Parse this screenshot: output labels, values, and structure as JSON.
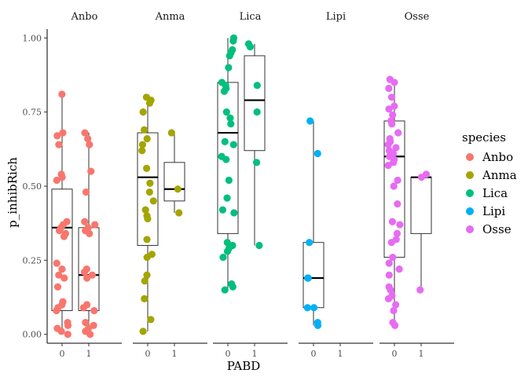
{
  "chart_data": {
    "type": "boxplot-jitter",
    "xlabel": "PABD",
    "ylabel": "p_inhibRich",
    "ylim": [
      -0.03,
      1.03
    ],
    "yticks": [
      0.0,
      0.25,
      0.5,
      0.75,
      1.0
    ],
    "ytick_labels": [
      "0.00",
      "0.25",
      "0.50",
      "0.75",
      "1.00"
    ],
    "xtick_labels": [
      "0",
      "1"
    ],
    "legend": {
      "title": "species",
      "placement": "right"
    },
    "panels": [
      {
        "name": "Anbo",
        "color": "#F8766D",
        "boxes": [
          {
            "pabd": "0",
            "min": 0.0,
            "q1": 0.08,
            "median": 0.36,
            "q3": 0.49,
            "max": 0.81
          },
          {
            "pabd": "1",
            "min": 0.0,
            "q1": 0.08,
            "median": 0.2,
            "q3": 0.36,
            "max": 0.68
          }
        ],
        "points": [
          {
            "pabd": "0",
            "values": [
              0.81,
              0.68,
              0.67,
              0.64,
              0.54,
              0.53,
              0.52,
              0.38,
              0.37,
              0.36,
              0.35,
              0.34,
              0.33,
              0.24,
              0.22,
              0.2,
              0.19,
              0.16,
              0.11,
              0.1,
              0.09,
              0.08,
              0.04,
              0.03,
              0.02,
              0.01,
              0.0
            ]
          },
          {
            "pabd": "1",
            "values": [
              0.68,
              0.66,
              0.64,
              0.55,
              0.48,
              0.38,
              0.37,
              0.36,
              0.35,
              0.34,
              0.22,
              0.21,
              0.2,
              0.19,
              0.1,
              0.09,
              0.08,
              0.04,
              0.03,
              0.02,
              0.01,
              0.0
            ]
          }
        ]
      },
      {
        "name": "Anma",
        "color": "#A3A500",
        "boxes": [
          {
            "pabd": "0",
            "min": 0.01,
            "q1": 0.3,
            "median": 0.53,
            "q3": 0.68,
            "max": 0.8
          },
          {
            "pabd": "1",
            "min": 0.41,
            "q1": 0.45,
            "median": 0.49,
            "q3": 0.58,
            "max": 0.68
          }
        ],
        "points": [
          {
            "pabd": "0",
            "values": [
              0.8,
              0.79,
              0.78,
              0.75,
              0.69,
              0.66,
              0.64,
              0.62,
              0.56,
              0.51,
              0.48,
              0.45,
              0.42,
              0.4,
              0.39,
              0.32,
              0.27,
              0.26,
              0.2,
              0.18,
              0.12,
              0.05,
              0.01
            ]
          },
          {
            "pabd": "1",
            "values": [
              0.68,
              0.49,
              0.41
            ]
          }
        ]
      },
      {
        "name": "Lica",
        "color": "#00BF7D",
        "boxes": [
          {
            "pabd": "0",
            "min": 0.15,
            "q1": 0.34,
            "median": 0.68,
            "q3": 0.85,
            "max": 1.0
          },
          {
            "pabd": "1",
            "min": 0.3,
            "q1": 0.62,
            "median": 0.79,
            "q3": 0.94,
            "max": 0.98
          }
        ],
        "points": [
          {
            "pabd": "0",
            "values": [
              1.0,
              0.99,
              0.96,
              0.95,
              0.94,
              0.9,
              0.85,
              0.84,
              0.83,
              0.82,
              0.75,
              0.73,
              0.71,
              0.65,
              0.64,
              0.6,
              0.59,
              0.52,
              0.46,
              0.42,
              0.41,
              0.31,
              0.3,
              0.29,
              0.28,
              0.26,
              0.17,
              0.16,
              0.15
            ]
          },
          {
            "pabd": "1",
            "values": [
              0.98,
              0.97,
              0.84,
              0.75,
              0.58,
              0.3
            ]
          }
        ]
      },
      {
        "name": "Lipi",
        "color": "#00B0F6",
        "boxes": [
          {
            "pabd": "0",
            "min": 0.03,
            "q1": 0.09,
            "median": 0.19,
            "q3": 0.31,
            "max": 0.72
          }
        ],
        "points": [
          {
            "pabd": "0",
            "values": [
              0.72,
              0.61,
              0.31,
              0.19,
              0.19,
              0.09,
              0.09,
              0.04,
              0.03
            ]
          }
        ]
      },
      {
        "name": "Osse",
        "color": "#E76BF3",
        "boxes": [
          {
            "pabd": "0",
            "min": 0.03,
            "q1": 0.26,
            "median": 0.6,
            "q3": 0.72,
            "max": 0.86
          },
          {
            "pabd": "1",
            "min": 0.15,
            "q1": 0.34,
            "median": 0.53,
            "q3": 0.53,
            "max": 0.54
          }
        ],
        "points": [
          {
            "pabd": "0",
            "values": [
              0.86,
              0.85,
              0.83,
              0.8,
              0.77,
              0.76,
              0.74,
              0.72,
              0.71,
              0.68,
              0.66,
              0.65,
              0.64,
              0.63,
              0.62,
              0.61,
              0.6,
              0.59,
              0.58,
              0.57,
              0.52,
              0.5,
              0.44,
              0.38,
              0.37,
              0.34,
              0.32,
              0.31,
              0.26,
              0.24,
              0.22,
              0.2,
              0.16,
              0.15,
              0.13,
              0.12,
              0.1,
              0.08,
              0.04,
              0.03
            ]
          },
          {
            "pabd": "1",
            "values": [
              0.54,
              0.53,
              0.15
            ]
          }
        ]
      }
    ]
  }
}
